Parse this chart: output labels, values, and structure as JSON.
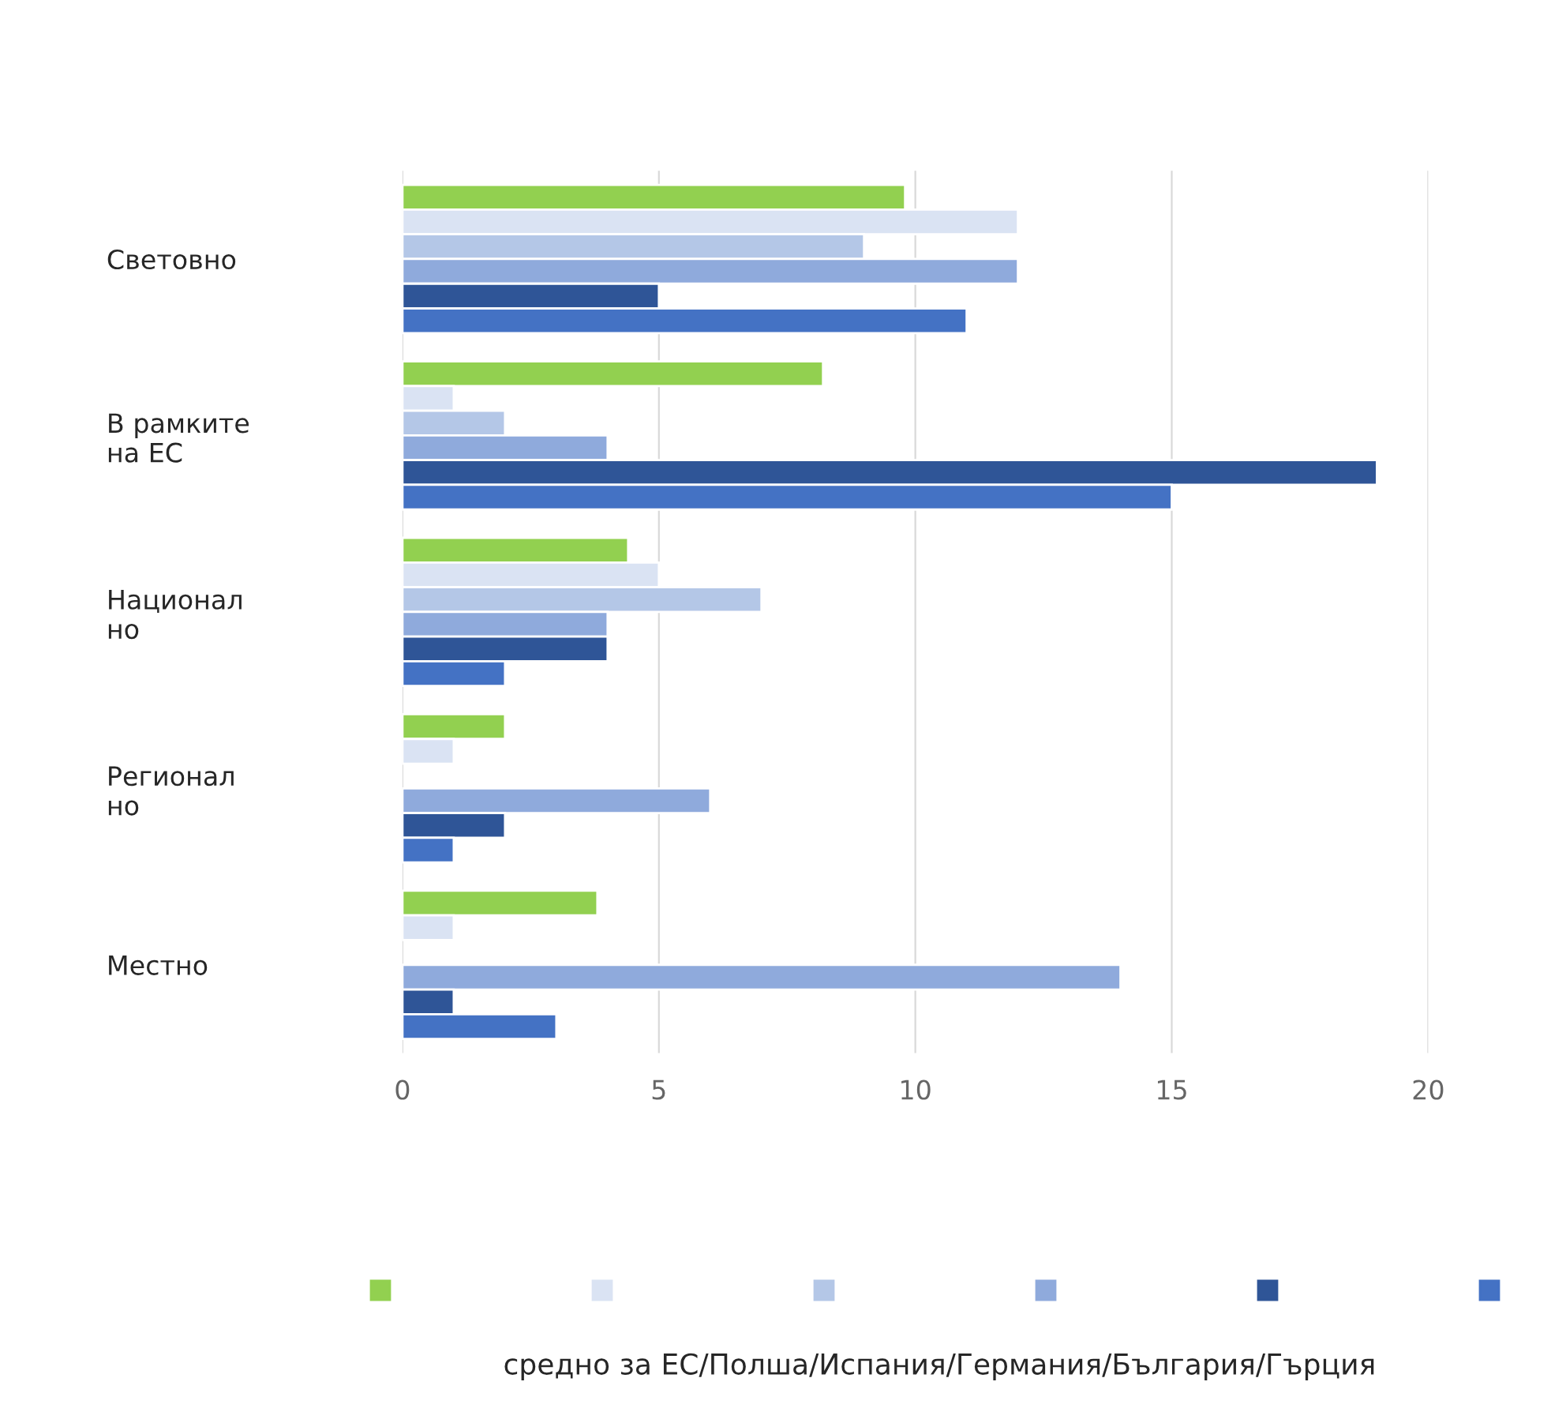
{
  "chart_data": {
    "type": "bar",
    "orientation": "horizontal",
    "categories": [
      "Световно",
      "В рамките\nна ЕС",
      "Национал\nно",
      "Регионал\nно",
      "Местно"
    ],
    "series": [
      {
        "color": "#92d050",
        "values": [
          9.8,
          8.2,
          4.4,
          2,
          3.8
        ]
      },
      {
        "color": "#dae3f3",
        "values": [
          12,
          1,
          5,
          1,
          1
        ]
      },
      {
        "color": "#b4c7e7",
        "values": [
          9,
          2,
          7,
          null,
          null
        ]
      },
      {
        "color": "#8faadc",
        "values": [
          12,
          4,
          4,
          6,
          14
        ]
      },
      {
        "color": "#2f5597",
        "values": [
          5,
          19,
          4,
          2,
          1
        ]
      },
      {
        "color": "#4472c4",
        "values": [
          11,
          15,
          2,
          1,
          3
        ]
      }
    ],
    "xlim": [
      0,
      20
    ],
    "xticks": [
      0,
      5,
      10,
      15,
      20
    ],
    "grid": "x",
    "annotations": [
      "средно за ЕС/Полша/Испания/Германия/България/Гърция"
    ]
  }
}
